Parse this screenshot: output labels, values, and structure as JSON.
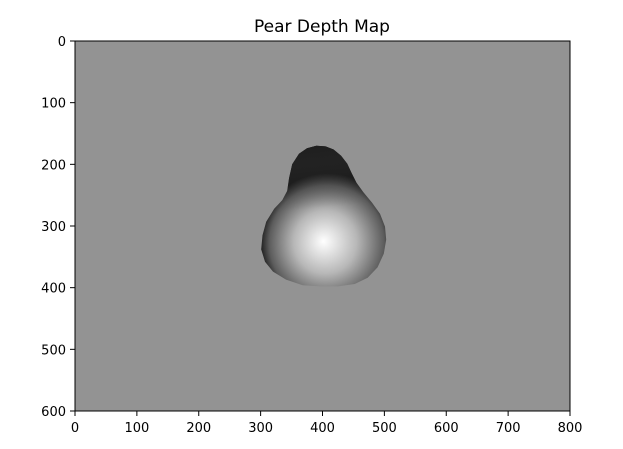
{
  "chart_data": {
    "type": "heatmap",
    "title": "Pear Depth Map",
    "xlabel": "",
    "ylabel": "",
    "xlim": [
      0,
      800
    ],
    "ylim": [
      600,
      0
    ],
    "x_ticks": [
      0,
      100,
      200,
      300,
      400,
      500,
      600,
      700,
      800
    ],
    "y_ticks": [
      0,
      100,
      200,
      300,
      400,
      500,
      600
    ],
    "grid": false,
    "legend": "none",
    "colormap": "gray",
    "background_value_color": "#939393",
    "object": {
      "name": "pear",
      "outline": [
        [
          390,
          170
        ],
        [
          405,
          171
        ],
        [
          418,
          176
        ],
        [
          430,
          186
        ],
        [
          440,
          199
        ],
        [
          447,
          214
        ],
        [
          455,
          230
        ],
        [
          466,
          245
        ],
        [
          480,
          262
        ],
        [
          493,
          280
        ],
        [
          501,
          301
        ],
        [
          503,
          322
        ],
        [
          499,
          345
        ],
        [
          489,
          367
        ],
        [
          473,
          384
        ],
        [
          452,
          394
        ],
        [
          425,
          398
        ],
        [
          397,
          398
        ],
        [
          368,
          396
        ],
        [
          341,
          387
        ],
        [
          320,
          374
        ],
        [
          307,
          358
        ],
        [
          301,
          338
        ],
        [
          303,
          315
        ],
        [
          309,
          293
        ],
        [
          322,
          272
        ],
        [
          335,
          258
        ],
        [
          343,
          243
        ],
        [
          346,
          222
        ],
        [
          351,
          200
        ],
        [
          362,
          183
        ],
        [
          375,
          174
        ]
      ],
      "bright_center": [
        408,
        328
      ],
      "bright_color": "#ffffff",
      "mid_color": "#b7b7b7",
      "dark_color": "#080808",
      "top_color": "#505050"
    }
  }
}
